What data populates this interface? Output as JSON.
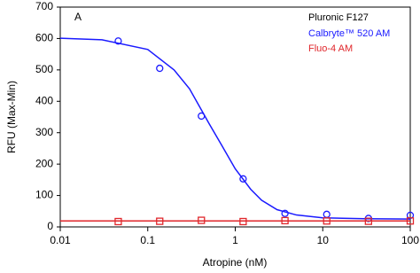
{
  "chart_data": {
    "type": "scatter",
    "panel_label": "A",
    "x_label": "Atropine (nM)",
    "y_label": "RFU (Max-Min)",
    "xscale": "log",
    "xlim": [
      0.01,
      100
    ],
    "xticks": [
      0.01,
      0.1,
      1,
      10,
      100
    ],
    "ylim": [
      0,
      700
    ],
    "yticks": [
      0,
      100,
      200,
      300,
      400,
      500,
      600,
      700
    ],
    "legend_title": "Pluronic F127",
    "legend_position": "upper right",
    "series": [
      {
        "name": "Calbryte™ 520 AM",
        "color": "#1a1aff",
        "marker": "circle",
        "x": [
          0.046,
          0.137,
          0.41,
          1.23,
          3.7,
          11.1,
          33.3,
          100
        ],
        "values": [
          592,
          505,
          353,
          153,
          43,
          40,
          27,
          37
        ],
        "curve": {
          "x": [
            0.01,
            0.03,
            0.1,
            0.2,
            0.3,
            0.5,
            0.7,
            1,
            1.5,
            2,
            3,
            5,
            10,
            30,
            100
          ],
          "values": [
            601,
            596,
            565,
            500,
            440,
            330,
            260,
            185,
            120,
            85,
            55,
            38,
            29,
            26,
            25
          ]
        }
      },
      {
        "name": "Fluo-4 AM",
        "color": "#e0262b",
        "marker": "square",
        "x": [
          0.046,
          0.137,
          0.41,
          1.23,
          3.7,
          11.1,
          33.3,
          100
        ],
        "values": [
          17,
          18,
          21,
          17,
          20,
          19,
          18,
          19
        ],
        "curve": {
          "x": [
            0.01,
            100
          ],
          "values": [
            19,
            19
          ]
        }
      }
    ]
  }
}
